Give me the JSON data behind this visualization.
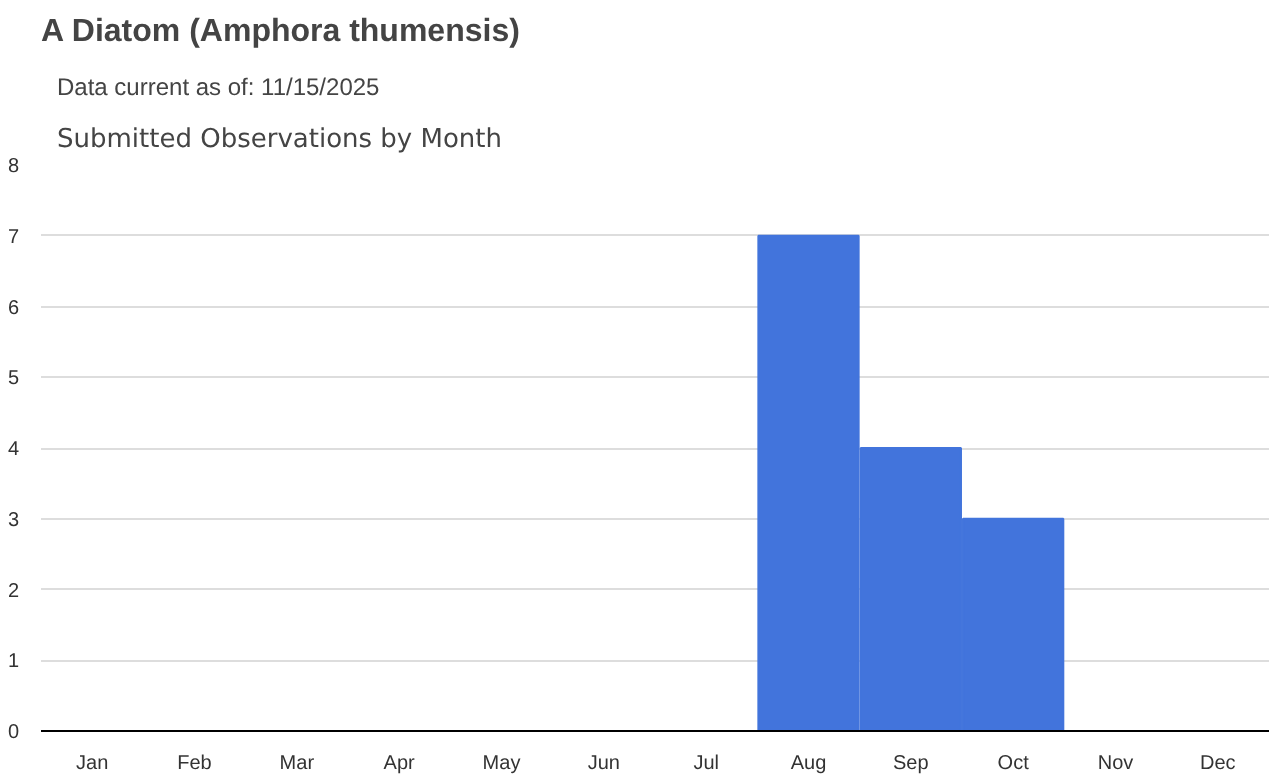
{
  "chart_data": {
    "type": "bar",
    "title": "A Diatom   (Amphora thumensis)",
    "subtitle": "Data current as of: 11/15/2025",
    "annotations": [
      "Submitted Observations by Month"
    ],
    "categories": [
      "Jan",
      "Feb",
      "Mar",
      "Apr",
      "May",
      "Jun",
      "Jul",
      "Aug",
      "Sep",
      "Oct",
      "Nov",
      "Dec"
    ],
    "values": [
      0,
      0,
      0,
      0,
      0,
      0,
      0,
      7,
      4,
      3,
      0,
      0
    ],
    "color": "#4274dc",
    "ylim": [
      0,
      8
    ],
    "yticks": [
      0,
      1,
      2,
      3,
      4,
      5,
      6,
      7,
      8
    ],
    "grid": "y"
  }
}
